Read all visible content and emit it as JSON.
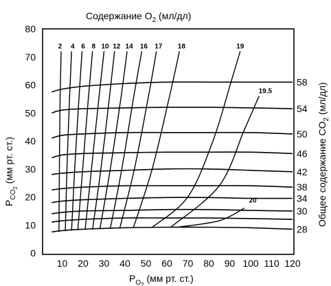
{
  "chart_data": {
    "type": "line",
    "title_main": "Содержание O",
    "title_sub": "2",
    "title_tail": " (мл/дл)",
    "xlabel_main": "P",
    "xlabel_sub": "O",
    "xlabel_sub2": "2",
    "xlabel_tail": " (мм рт. ст.)",
    "ylabel_main": "P",
    "ylabel_sub": "CO",
    "ylabel_sub2": "2",
    "ylabel_tail": " (мм рт. ст.)",
    "y2label_main": "Общее содержание CO",
    "y2label_sub": "2",
    "y2label_tail": " (мл/дл)",
    "xlim": [
      5,
      120
    ],
    "ylim": [
      5,
      80
    ],
    "x_ticks": [
      "10",
      "20",
      "30",
      "40",
      "50",
      "60",
      "70",
      "80",
      "90",
      "100",
      "110",
      "120"
    ],
    "y_ticks": [
      "0",
      "10",
      "20",
      "30",
      "40",
      "50",
      "60",
      "70",
      "80"
    ],
    "co2_series": [
      {
        "name": "58",
        "points": [
          [
            5,
            57.5
          ],
          [
            10,
            58.5
          ],
          [
            20,
            59.5
          ],
          [
            40,
            60.5
          ],
          [
            60,
            61
          ],
          [
            80,
            61
          ],
          [
            100,
            61
          ],
          [
            120,
            61
          ]
        ]
      },
      {
        "name": "54",
        "points": [
          [
            5,
            50
          ],
          [
            10,
            51
          ],
          [
            20,
            51.5
          ],
          [
            40,
            51.8
          ],
          [
            60,
            52
          ],
          [
            80,
            52
          ],
          [
            100,
            51.8
          ],
          [
            120,
            51.5
          ]
        ]
      },
      {
        "name": "50",
        "points": [
          [
            5,
            41
          ],
          [
            10,
            42
          ],
          [
            20,
            42.5
          ],
          [
            40,
            43
          ],
          [
            60,
            43
          ],
          [
            80,
            43
          ],
          [
            100,
            43
          ],
          [
            120,
            42.5
          ]
        ]
      },
      {
        "name": "46",
        "points": [
          [
            5,
            34
          ],
          [
            10,
            35
          ],
          [
            20,
            35.5
          ],
          [
            40,
            35.8
          ],
          [
            60,
            36
          ],
          [
            80,
            36
          ],
          [
            100,
            36
          ],
          [
            120,
            35.5
          ]
        ]
      },
      {
        "name": "42",
        "points": [
          [
            5,
            28
          ],
          [
            10,
            28.5
          ],
          [
            20,
            29
          ],
          [
            40,
            29.5
          ],
          [
            60,
            30
          ],
          [
            80,
            30
          ],
          [
            100,
            29.5
          ],
          [
            120,
            29
          ]
        ]
      },
      {
        "name": "38",
        "points": [
          [
            5,
            22.5
          ],
          [
            10,
            23
          ],
          [
            20,
            23.5
          ],
          [
            40,
            24
          ],
          [
            60,
            24
          ],
          [
            80,
            24
          ],
          [
            100,
            24
          ],
          [
            120,
            23.5
          ]
        ]
      },
      {
        "name": "34",
        "points": [
          [
            5,
            18
          ],
          [
            10,
            18.5
          ],
          [
            20,
            19
          ],
          [
            40,
            19.5
          ],
          [
            60,
            19.8
          ],
          [
            80,
            19.8
          ],
          [
            100,
            19.5
          ],
          [
            120,
            19.5
          ]
        ]
      },
      {
        "name": "30",
        "points": [
          [
            5,
            14
          ],
          [
            10,
            14.5
          ],
          [
            20,
            15
          ],
          [
            40,
            15.2
          ],
          [
            60,
            15.5
          ],
          [
            80,
            15.5
          ],
          [
            100,
            15.2
          ],
          [
            120,
            15
          ]
        ]
      },
      {
        "name": "",
        "points": [
          [
            5,
            11
          ],
          [
            10,
            11.5
          ],
          [
            20,
            12
          ],
          [
            40,
            12.5
          ],
          [
            60,
            12.5
          ],
          [
            80,
            12.5
          ],
          [
            100,
            12.3
          ],
          [
            120,
            12
          ]
        ]
      },
      {
        "name": "28",
        "points": [
          [
            5,
            7.5
          ],
          [
            10,
            8
          ],
          [
            20,
            8.5
          ],
          [
            40,
            9
          ],
          [
            60,
            9.2
          ],
          [
            80,
            9.2
          ],
          [
            100,
            9
          ],
          [
            120,
            8.5
          ]
        ]
      }
    ],
    "o2_series": [
      {
        "name": "2",
        "points": [
          [
            8.5,
            7.5
          ],
          [
            8.7,
            30
          ],
          [
            9.0,
            55
          ],
          [
            9.5,
            72
          ]
        ],
        "label_at": [
          9,
          73
        ]
      },
      {
        "name": "4",
        "points": [
          [
            11.5,
            7.8
          ],
          [
            12.3,
            30
          ],
          [
            13.5,
            55
          ],
          [
            14.5,
            72
          ]
        ],
        "label_at": [
          15,
          73
        ]
      },
      {
        "name": "6",
        "points": [
          [
            14.5,
            8
          ],
          [
            16,
            30
          ],
          [
            18,
            55
          ],
          [
            19.5,
            72
          ]
        ],
        "label_at": [
          20,
          73
        ]
      },
      {
        "name": "8",
        "points": [
          [
            17.5,
            8.2
          ],
          [
            19.8,
            30
          ],
          [
            22.5,
            55
          ],
          [
            24.5,
            72
          ]
        ],
        "label_at": [
          25,
          73
        ]
      },
      {
        "name": "10",
        "points": [
          [
            21,
            8.3
          ],
          [
            24,
            30
          ],
          [
            27.5,
            55
          ],
          [
            30,
            72
          ]
        ],
        "label_at": [
          30.5,
          73
        ]
      },
      {
        "name": "12",
        "points": [
          [
            24.5,
            8.4
          ],
          [
            28.5,
            30
          ],
          [
            32.5,
            55
          ],
          [
            35,
            72
          ]
        ],
        "label_at": [
          36,
          73
        ]
      },
      {
        "name": "14",
        "points": [
          [
            28,
            8.5
          ],
          [
            33,
            30
          ],
          [
            38,
            55
          ],
          [
            41,
            72
          ]
        ],
        "label_at": [
          42,
          73
        ]
      },
      {
        "name": "16",
        "points": [
          [
            33,
            8.7
          ],
          [
            38.5,
            30
          ],
          [
            44,
            55
          ],
          [
            48,
            72
          ]
        ],
        "label_at": [
          49,
          73
        ]
      },
      {
        "name": "17",
        "points": [
          [
            37.5,
            8.8
          ],
          [
            44.5,
            30
          ],
          [
            51,
            55
          ],
          [
            55,
            72
          ]
        ],
        "label_at": [
          56,
          73
        ]
      },
      {
        "name": "18",
        "points": [
          [
            44,
            9
          ],
          [
            53,
            30
          ],
          [
            61,
            55
          ],
          [
            66,
            72
          ]
        ],
        "label_at": [
          67,
          73
        ]
      },
      {
        "name": "19",
        "points": [
          [
            53,
            9.2
          ],
          [
            70,
            20
          ],
          [
            82,
            40
          ],
          [
            91,
            62
          ],
          [
            95,
            72
          ]
        ],
        "label_at": [
          95,
          73
        ]
      },
      {
        "name": "19.5",
        "points": [
          [
            62,
            9.3
          ],
          [
            85,
            24
          ],
          [
            97,
            44
          ],
          [
            104,
            56
          ]
        ],
        "label_at": [
          107,
          57
        ]
      },
      {
        "name": "20",
        "points": [
          [
            66,
            9.3
          ],
          [
            85,
            11.5
          ],
          [
            97,
            16
          ]
        ],
        "label_at": [
          101,
          18
        ]
      }
    ]
  }
}
